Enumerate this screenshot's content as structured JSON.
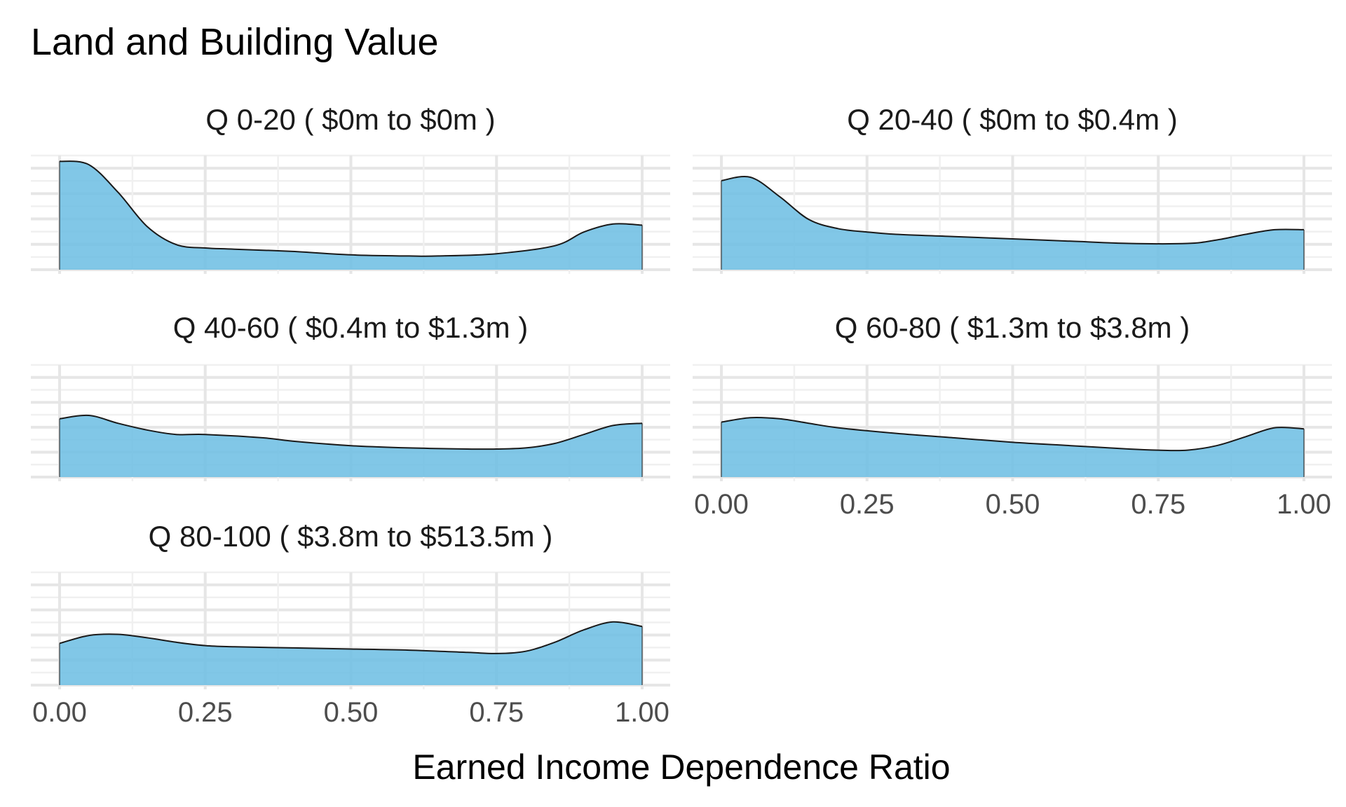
{
  "chart_data": {
    "type": "area",
    "title": "Land and Building Value",
    "xlabel": "Earned Income Dependence Ratio",
    "ylabel": "",
    "xlim": [
      0,
      1
    ],
    "x_ticks": [
      "0.00",
      "0.25",
      "0.50",
      "0.75",
      "1.00"
    ],
    "y_ticks_shown": false,
    "grid": true,
    "legend": "none",
    "fill_color": "#6bbde3",
    "line_color": "#1a1a1a",
    "panels": [
      {
        "label": "Q 0-20   ( $0m to $0m )",
        "x": [
          0,
          0.05,
          0.1,
          0.15,
          0.2,
          0.25,
          0.3,
          0.4,
          0.5,
          0.6,
          0.65,
          0.75,
          0.85,
          0.9,
          0.95,
          1.0
        ],
        "y": [
          0.95,
          0.92,
          0.68,
          0.38,
          0.22,
          0.19,
          0.18,
          0.16,
          0.13,
          0.12,
          0.12,
          0.14,
          0.21,
          0.33,
          0.4,
          0.39
        ]
      },
      {
        "label": "Q 20-40   ( $0m to $0.4m )",
        "x": [
          0,
          0.05,
          0.1,
          0.15,
          0.2,
          0.25,
          0.3,
          0.4,
          0.5,
          0.6,
          0.7,
          0.8,
          0.85,
          0.9,
          0.95,
          1.0
        ],
        "y": [
          0.78,
          0.81,
          0.64,
          0.44,
          0.36,
          0.33,
          0.31,
          0.29,
          0.27,
          0.25,
          0.23,
          0.23,
          0.26,
          0.31,
          0.35,
          0.35
        ]
      },
      {
        "label": "Q 40-60   ( $0.4m to $1.3m )",
        "x": [
          0,
          0.05,
          0.1,
          0.15,
          0.2,
          0.25,
          0.35,
          0.4,
          0.5,
          0.6,
          0.7,
          0.75,
          0.8,
          0.85,
          0.9,
          0.95,
          1.0
        ],
        "y": [
          0.52,
          0.55,
          0.48,
          0.42,
          0.38,
          0.38,
          0.35,
          0.32,
          0.28,
          0.26,
          0.25,
          0.25,
          0.26,
          0.3,
          0.38,
          0.46,
          0.48
        ]
      },
      {
        "label": "Q 60-80   ( $1.3m to $3.8m )",
        "x": [
          0,
          0.05,
          0.1,
          0.15,
          0.2,
          0.3,
          0.4,
          0.5,
          0.6,
          0.7,
          0.75,
          0.8,
          0.85,
          0.9,
          0.95,
          1.0
        ],
        "y": [
          0.49,
          0.53,
          0.52,
          0.48,
          0.44,
          0.39,
          0.35,
          0.31,
          0.28,
          0.25,
          0.24,
          0.24,
          0.28,
          0.36,
          0.44,
          0.43
        ]
      },
      {
        "label": "Q 80-100   ( $3.8m to $513.5m )",
        "x": [
          0,
          0.05,
          0.1,
          0.15,
          0.2,
          0.25,
          0.3,
          0.4,
          0.5,
          0.6,
          0.7,
          0.75,
          0.8,
          0.85,
          0.9,
          0.95,
          1.0
        ],
        "y": [
          0.37,
          0.44,
          0.45,
          0.42,
          0.38,
          0.35,
          0.34,
          0.33,
          0.32,
          0.31,
          0.29,
          0.28,
          0.3,
          0.38,
          0.49,
          0.56,
          0.52
        ]
      }
    ]
  }
}
